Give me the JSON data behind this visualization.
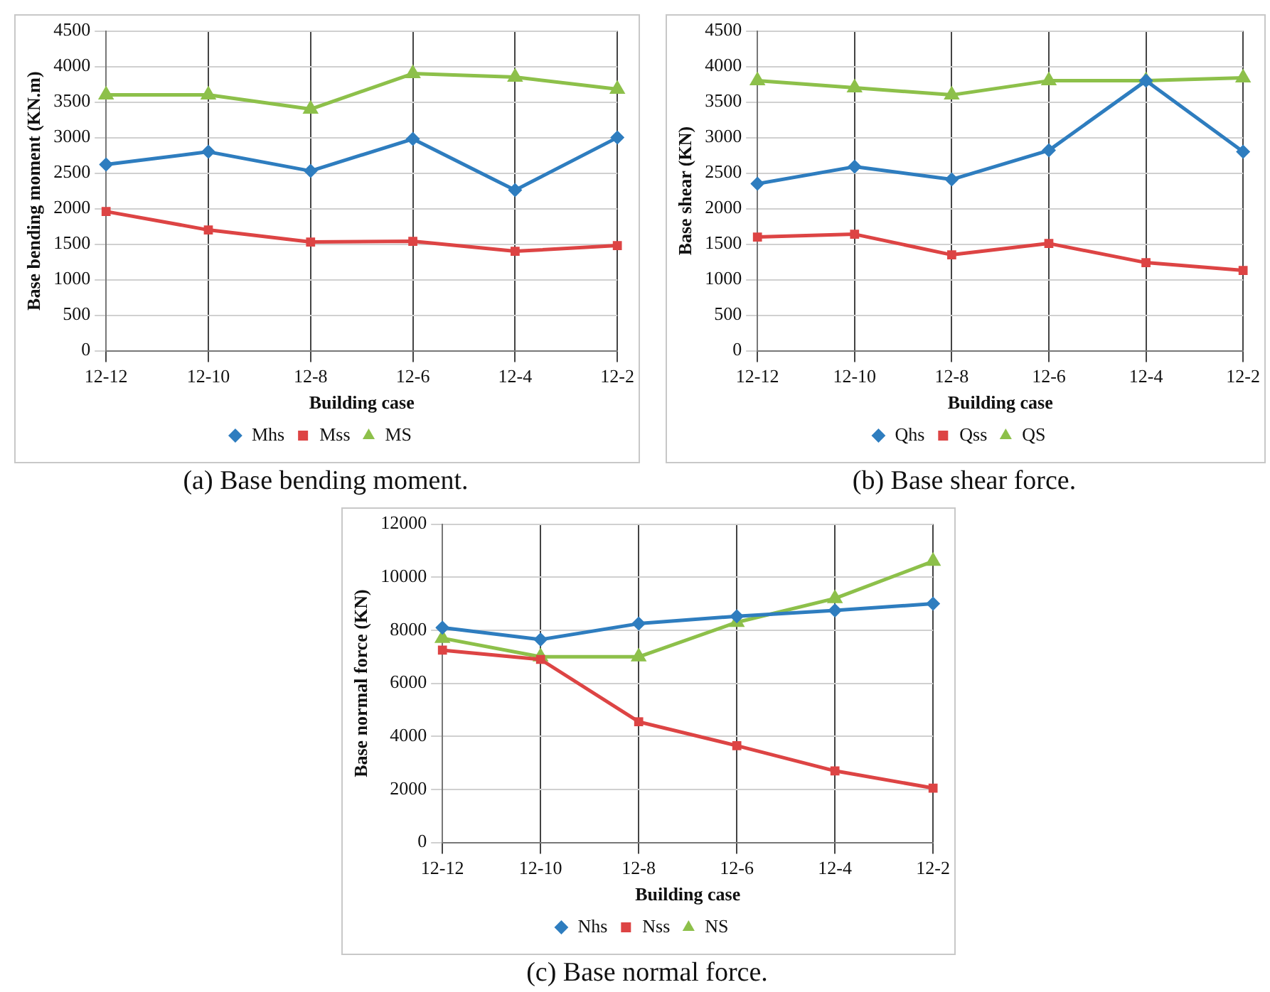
{
  "chart_data": [
    {
      "type": "line",
      "title": "(a) Base bending moment.",
      "xlabel": "Building case",
      "ylabel": "Base bending moment (KN.m)",
      "categories": [
        "12-12",
        "12-10",
        "12-8",
        "12-6",
        "12-4",
        "12-2"
      ],
      "ylim": [
        0,
        4500
      ],
      "yticks": [
        0,
        500,
        1000,
        1500,
        2000,
        2500,
        3000,
        3500,
        4000,
        4500
      ],
      "grid": true,
      "legend": "bottom",
      "series": [
        {
          "name": "Mhs",
          "color": "#2e7dbf",
          "marker": "diamond",
          "values": [
            2620,
            2800,
            2530,
            2980,
            2260,
            3000
          ]
        },
        {
          "name": "Mss",
          "color": "#dd4444",
          "marker": "square",
          "values": [
            1960,
            1700,
            1530,
            1540,
            1400,
            1480
          ]
        },
        {
          "name": "MS",
          "color": "#8dc04a",
          "marker": "triangle",
          "values": [
            3600,
            3600,
            3400,
            3900,
            3850,
            3680
          ]
        }
      ]
    },
    {
      "type": "line",
      "title": "(b) Base shear force.",
      "xlabel": "Building case",
      "ylabel": "Base shear (KN)",
      "categories": [
        "12-12",
        "12-10",
        "12-8",
        "12-6",
        "12-4",
        "12-2"
      ],
      "ylim": [
        0,
        4500
      ],
      "yticks": [
        0,
        500,
        1000,
        1500,
        2000,
        2500,
        3000,
        3500,
        4000,
        4500
      ],
      "grid": true,
      "legend": "bottom",
      "series": [
        {
          "name": "Qhs",
          "color": "#2e7dbf",
          "marker": "diamond",
          "values": [
            2350,
            2590,
            2410,
            2820,
            3800,
            2800
          ]
        },
        {
          "name": "Qss",
          "color": "#dd4444",
          "marker": "square",
          "values": [
            1600,
            1640,
            1350,
            1510,
            1240,
            1130
          ]
        },
        {
          "name": "QS",
          "color": "#8dc04a",
          "marker": "triangle",
          "values": [
            3800,
            3700,
            3600,
            3800,
            3800,
            3840
          ]
        }
      ]
    },
    {
      "type": "line",
      "title": "(c) Base normal force.",
      "xlabel": "Building case",
      "ylabel": "Base normal force (KN)",
      "categories": [
        "12-12",
        "12-10",
        "12-8",
        "12-6",
        "12-4",
        "12-2"
      ],
      "ylim": [
        0,
        12000
      ],
      "yticks": [
        0,
        2000,
        4000,
        6000,
        8000,
        10000,
        12000
      ],
      "grid": true,
      "legend": "bottom",
      "series": [
        {
          "name": "Nhs",
          "color": "#2e7dbf",
          "marker": "diamond",
          "values": [
            8100,
            7650,
            8250,
            8530,
            8750,
            9000
          ]
        },
        {
          "name": "Nss",
          "color": "#dd4444",
          "marker": "square",
          "values": [
            7250,
            6900,
            4550,
            3650,
            2700,
            2050
          ]
        },
        {
          "name": "NS",
          "color": "#8dc04a",
          "marker": "triangle",
          "values": [
            7700,
            7000,
            7000,
            8300,
            9200,
            10600
          ]
        }
      ]
    }
  ]
}
